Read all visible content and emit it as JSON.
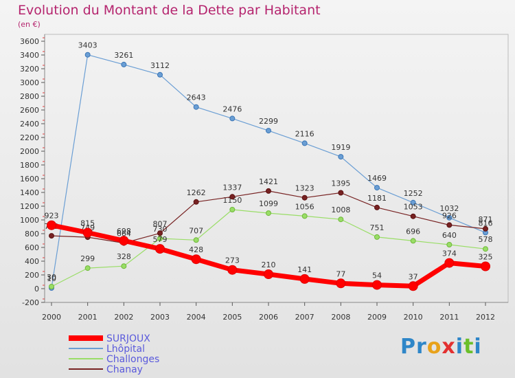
{
  "title": "Evolution du Montant de la Dette par Habitant",
  "subtitle": "(en €)",
  "logo": {
    "text": "Proxiti",
    "colors": [
      "#2e86c8",
      "#2e86c8",
      "#e8a21b",
      "#e33030",
      "#2e86c8",
      "#6bbf2a",
      "#2e86c8"
    ]
  },
  "chart_data": {
    "type": "line",
    "x": [
      "2000",
      "2001",
      "2002",
      "2003",
      "2004",
      "2005",
      "2006",
      "2007",
      "2008",
      "2009",
      "2010",
      "2011",
      "2012"
    ],
    "ylim": [
      -200,
      3600
    ],
    "yticks": [
      -200,
      0,
      200,
      400,
      600,
      800,
      1000,
      1200,
      1400,
      1600,
      1800,
      2000,
      2200,
      2400,
      2600,
      2800,
      3000,
      3200,
      3400,
      3600
    ],
    "grid": false,
    "legend_position": "bottom-left",
    "series": [
      {
        "name": "SURJOUX",
        "color": "#ff0000",
        "width": 7,
        "values": [
          923,
          815,
          698,
          579,
          428,
          273,
          210,
          141,
          77,
          54,
          37,
          374,
          325
        ]
      },
      {
        "name": "Lhôpital",
        "color": "#6a9ed4",
        "width": 1.2,
        "values": [
          10,
          3403,
          3261,
          3112,
          2643,
          2476,
          2299,
          2116,
          1919,
          1469,
          1252,
          1032,
          816
        ]
      },
      {
        "name": "Challonges",
        "color": "#99dd66",
        "width": 1.2,
        "values": [
          30,
          299,
          328,
          730,
          707,
          1150,
          1099,
          1056,
          1008,
          751,
          696,
          640,
          578
        ]
      },
      {
        "name": "Chanay",
        "color": "#772222",
        "width": 1.2,
        "values": [
          769,
          749,
          664,
          807,
          1262,
          1337,
          1421,
          1323,
          1395,
          1181,
          1053,
          926,
          871
        ]
      }
    ]
  }
}
